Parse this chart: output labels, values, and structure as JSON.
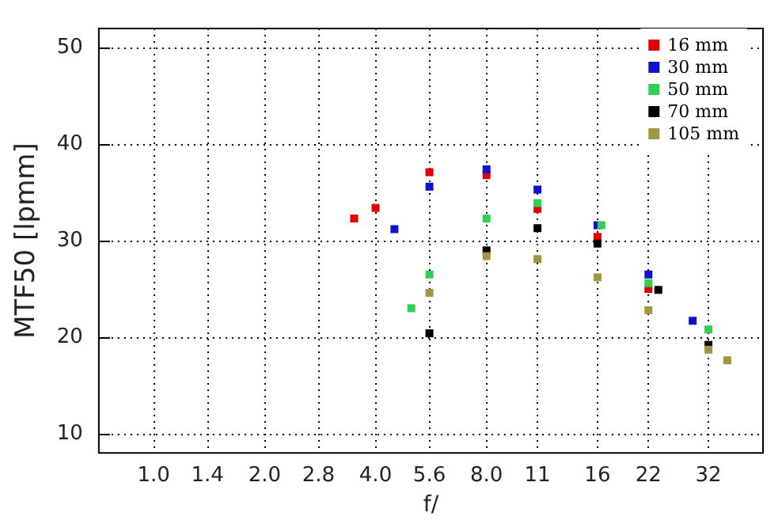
{
  "chart_data": {
    "type": "scatter",
    "xlabel": "f/",
    "ylabel": "MTF50 [lpmm]",
    "log": "x",
    "xlim": [
      0.71,
      45
    ],
    "ylim": [
      8,
      52
    ],
    "xticks": [
      {
        "value": 1,
        "label": "1.0"
      },
      1.4,
      {
        "value": 2,
        "label": "2.0"
      },
      2.8,
      {
        "value": 4,
        "label": "4.0"
      },
      5.6,
      {
        "value": 8,
        "label": "8.0"
      },
      11,
      16,
      22,
      32
    ],
    "yticks": [
      10,
      20,
      30,
      40,
      50
    ],
    "grid": true,
    "legend": "top right",
    "marker": "square",
    "series": [
      {
        "name": "16 mm",
        "color": "#e00000",
        "x": [
          3.5,
          4,
          5.6,
          8,
          11,
          16,
          22
        ],
        "values": [
          32.3,
          33.4,
          37.1,
          36.8,
          33.3,
          30.4,
          25.0
        ]
      },
      {
        "name": "30 mm",
        "color": "#1010d0",
        "x": [
          4.5,
          5.6,
          8,
          11,
          16,
          22,
          29
        ],
        "values": [
          31.2,
          35.6,
          37.4,
          35.3,
          31.6,
          26.5,
          21.7
        ]
      },
      {
        "name": "50 mm",
        "color": "#30d050",
        "x": [
          5,
          5.6,
          8,
          11,
          16.4,
          22,
          32
        ],
        "values": [
          23.0,
          26.5,
          32.3,
          33.9,
          31.6,
          25.6,
          20.8
        ]
      },
      {
        "name": "70 mm",
        "color": "#000000",
        "x": [
          5.6,
          8,
          11,
          16,
          23.4,
          32
        ],
        "values": [
          20.4,
          29.0,
          31.3,
          29.7,
          24.9,
          19.2
        ]
      },
      {
        "name": "105 mm",
        "color": "#a09840",
        "x": [
          5.6,
          8,
          11,
          16,
          22,
          32,
          36
        ],
        "values": [
          24.6,
          28.4,
          28.1,
          26.2,
          22.8,
          18.7,
          17.6
        ]
      }
    ]
  }
}
